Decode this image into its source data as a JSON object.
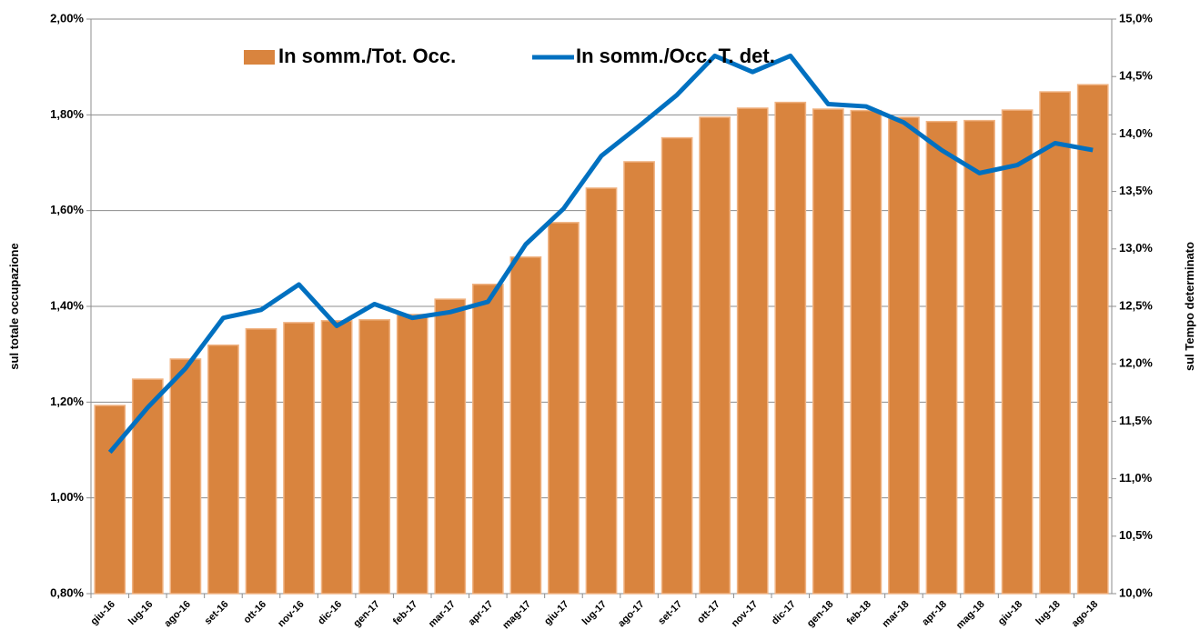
{
  "chart_data": {
    "type": "combo",
    "categories": [
      "giu-16",
      "lug-16",
      "ago-16",
      "set-16",
      "ott-16",
      "nov-16",
      "dic-16",
      "gen-17",
      "feb-17",
      "mar-17",
      "apr-17",
      "mag-17",
      "giu-17",
      "lug-17",
      "ago-17",
      "set-17",
      "ott-17",
      "nov-17",
      "dic-17",
      "gen-18",
      "feb-18",
      "mar-18",
      "apr-18",
      "mag-18",
      "giu-18",
      "lug-18",
      "ago-18"
    ],
    "series": [
      {
        "name": "In somm./Tot. Occ.",
        "type": "bar",
        "color": "#d9843e",
        "values": [
          1.193,
          1.248,
          1.29,
          1.319,
          1.353,
          1.366,
          1.37,
          1.372,
          1.383,
          1.415,
          1.446,
          1.503,
          1.575,
          1.647,
          1.702,
          1.752,
          1.795,
          1.814,
          1.826,
          1.812,
          1.809,
          1.795,
          1.786,
          1.788,
          1.81,
          1.848,
          1.863
        ]
      },
      {
        "name": "In somm./Occ. T. det.",
        "type": "line",
        "axis": "y2",
        "color": "#0070c0",
        "values": [
          11.23,
          11.62,
          11.96,
          12.4,
          12.47,
          12.69,
          12.33,
          12.52,
          12.4,
          12.45,
          12.54,
          13.04,
          13.35,
          13.81,
          14.07,
          14.34,
          14.68,
          14.54,
          14.68,
          14.26,
          14.24,
          14.1,
          13.86,
          13.66,
          13.73,
          13.92,
          13.86
        ]
      }
    ],
    "ylabel": "sul totale occupazione",
    "y2label": "sul Tempo determinato",
    "ylim": [
      0.8,
      2.0
    ],
    "yticks": [
      {
        "value": 0.8,
        "label": "0,80%"
      },
      {
        "value": 1.0,
        "label": "1,00%"
      },
      {
        "value": 1.2,
        "label": "1,20%"
      },
      {
        "value": 1.4,
        "label": "1,40%"
      },
      {
        "value": 1.6,
        "label": "1,60%"
      },
      {
        "value": 1.8,
        "label": "1,80%"
      },
      {
        "value": 2.0,
        "label": "2,00%"
      }
    ],
    "y2lim": [
      10,
      15
    ],
    "y2ticks": [
      {
        "value": 10,
        "label": "10,0%"
      },
      {
        "value": 10.5,
        "label": "10,5%"
      },
      {
        "value": 11,
        "label": "11,0%"
      },
      {
        "value": 11.5,
        "label": "11,5%"
      },
      {
        "value": 12,
        "label": "12,0%"
      },
      {
        "value": 12.5,
        "label": "12,5%"
      },
      {
        "value": 13,
        "label": "13,0%"
      },
      {
        "value": 13.5,
        "label": "13,5%"
      },
      {
        "value": 14,
        "label": "14,0%"
      },
      {
        "value": 14.5,
        "label": "14,5%"
      },
      {
        "value": 15,
        "label": "15,0%"
      }
    ],
    "grid": true,
    "legend": "top"
  }
}
